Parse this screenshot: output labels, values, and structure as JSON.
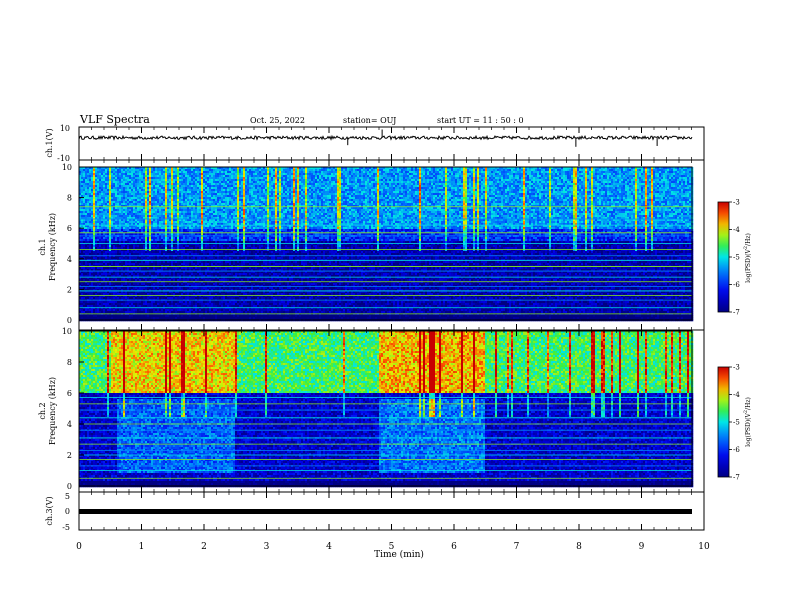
{
  "header": {
    "title": "VLF Spectra",
    "date": "Oct. 25, 2022",
    "station": "station= OUJ",
    "start": "start  UT =    11 : 50 : 0"
  },
  "chart_data": [
    {
      "type": "line",
      "name": "channel-1-waveform",
      "ylabel": "ch.1(V)",
      "ylim": [
        -10,
        10
      ],
      "yticks": [
        "10",
        "-10"
      ],
      "xlim": [
        0,
        10
      ],
      "baseline": 3.5,
      "noise_amplitude": 1.0,
      "spikes": [
        {
          "x": 4.85,
          "y": 8.5
        },
        {
          "x": 4.3,
          "y": -1.0
        },
        {
          "x": 7.95,
          "y": -2.0
        },
        {
          "x": 9.25,
          "y": -1.5
        }
      ]
    },
    {
      "type": "heatmap",
      "name": "channel-1-spectrogram",
      "ylabel": "ch.1\nFrequency (kHz)",
      "ylim": [
        0,
        10
      ],
      "yticks": [
        "0",
        "2",
        "4",
        "6",
        "8",
        "10"
      ],
      "xlim": [
        0,
        10
      ],
      "colorbar": {
        "label": "log(PSD)(V²/Hz)",
        "min": -7,
        "max": -3,
        "ticks": [
          "-3",
          "-4",
          "-5",
          "-6",
          "-7"
        ]
      },
      "bands": [
        {
          "f0": 6.0,
          "f1": 10.0,
          "level": -5.4
        },
        {
          "f0": 5.2,
          "f1": 6.0,
          "level": -6.0
        },
        {
          "f0": 0.3,
          "f1": 5.2,
          "level": -6.7
        }
      ],
      "lines_khz": [
        0.4,
        0.8,
        1.3,
        1.6,
        1.9,
        2.2,
        2.5,
        2.8,
        3.2,
        3.5,
        3.9,
        4.2,
        4.6,
        5.0,
        5.5,
        5.7,
        6.2,
        6.6,
        7.4
      ]
    },
    {
      "type": "heatmap",
      "name": "channel-2-spectrogram",
      "ylabel": "ch.2\nFrequency (kHz)",
      "ylim": [
        0,
        10
      ],
      "yticks": [
        "0",
        "2",
        "4",
        "6",
        "8",
        "10"
      ],
      "xlim": [
        0,
        10
      ],
      "colorbar": {
        "label": "log(PSD)(V²/Hz)",
        "min": -7,
        "max": -3,
        "ticks": [
          "-3",
          "-4",
          "-5",
          "-6",
          "-7"
        ]
      },
      "bands": [
        {
          "f0": 6.0,
          "f1": 10.0,
          "level": -4.6
        },
        {
          "f0": 0.3,
          "f1": 6.0,
          "level": -6.5
        }
      ],
      "active_intervals": [
        {
          "t0": 0.5,
          "t1": 2.5,
          "f0": 6.0,
          "f1": 10.0,
          "level": -3.9
        },
        {
          "t0": 4.8,
          "t1": 6.5,
          "f0": 6.0,
          "f1": 10.0,
          "level": -3.8
        },
        {
          "t0": 0.6,
          "t1": 2.5,
          "f0": 0.8,
          "f1": 5.6,
          "level": -5.7
        },
        {
          "t0": 4.8,
          "t1": 6.5,
          "f0": 0.8,
          "f1": 5.6,
          "level": -5.6
        }
      ],
      "lines_khz": [
        0.5,
        1.0,
        1.3,
        1.7,
        2.0,
        2.3,
        2.7,
        3.1,
        3.6,
        4.0,
        4.4,
        4.9,
        5.3,
        5.7
      ]
    },
    {
      "type": "line",
      "name": "channel-3-waveform",
      "ylabel": "ch.3(V)",
      "ylim": [
        -5,
        5
      ],
      "yticks": [
        "5",
        "0",
        "-5"
      ],
      "xlim": [
        0,
        10
      ],
      "baseline": 0
    }
  ],
  "xaxis": {
    "label": "Time  (min)",
    "ticks": [
      "0",
      "1",
      "2",
      "3",
      "4",
      "5",
      "6",
      "7",
      "8",
      "9",
      "10"
    ]
  }
}
